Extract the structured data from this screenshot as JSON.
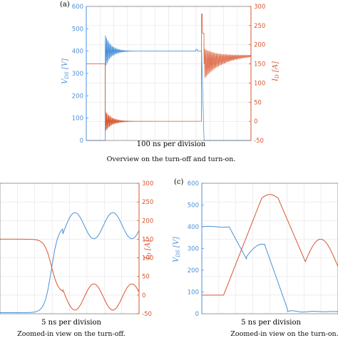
{
  "colors": {
    "vds": "#4a90d9",
    "id": "#d9552e",
    "axis": "#333333",
    "grid": "#e3e3e3"
  },
  "chart_data": [
    {
      "panel_label": "(a)",
      "type": "line",
      "xlabel": "100 ns per division",
      "caption": "Overview on the turn-off and turn-on.",
      "ylabel_left": "V_DS [V]",
      "ylabel_right": "I_D [A]",
      "left_ticks": [
        "0",
        "100",
        "200",
        "300",
        "400",
        "500",
        "600"
      ],
      "right_ticks": [
        "-50",
        "0",
        "50",
        "100",
        "150",
        "200",
        "250",
        "300"
      ],
      "ylim_left": [
        0,
        600
      ],
      "ylim_right": [
        -50,
        300
      ],
      "grid": true
    },
    {
      "panel_label": "",
      "type": "line",
      "xlabel": "5 ns per division",
      "caption": "Zoomed-in view on the turn-off.",
      "ylabel_right": "I_D [A]",
      "right_ticks": [
        "-50",
        "0",
        "50",
        "100",
        "150",
        "200",
        "250",
        "300"
      ],
      "ylim_right": [
        -50,
        300
      ],
      "grid": true
    },
    {
      "panel_label": "(c)",
      "type": "line",
      "xlabel": "5 ns per division",
      "caption": "Zoomed-in view on the turn-on.",
      "ylabel_left": "V_DS [V]",
      "left_ticks": [
        "0",
        "100",
        "200",
        "300",
        "400",
        "500",
        "600"
      ],
      "ylim_left": [
        0,
        600
      ],
      "grid": true
    }
  ]
}
